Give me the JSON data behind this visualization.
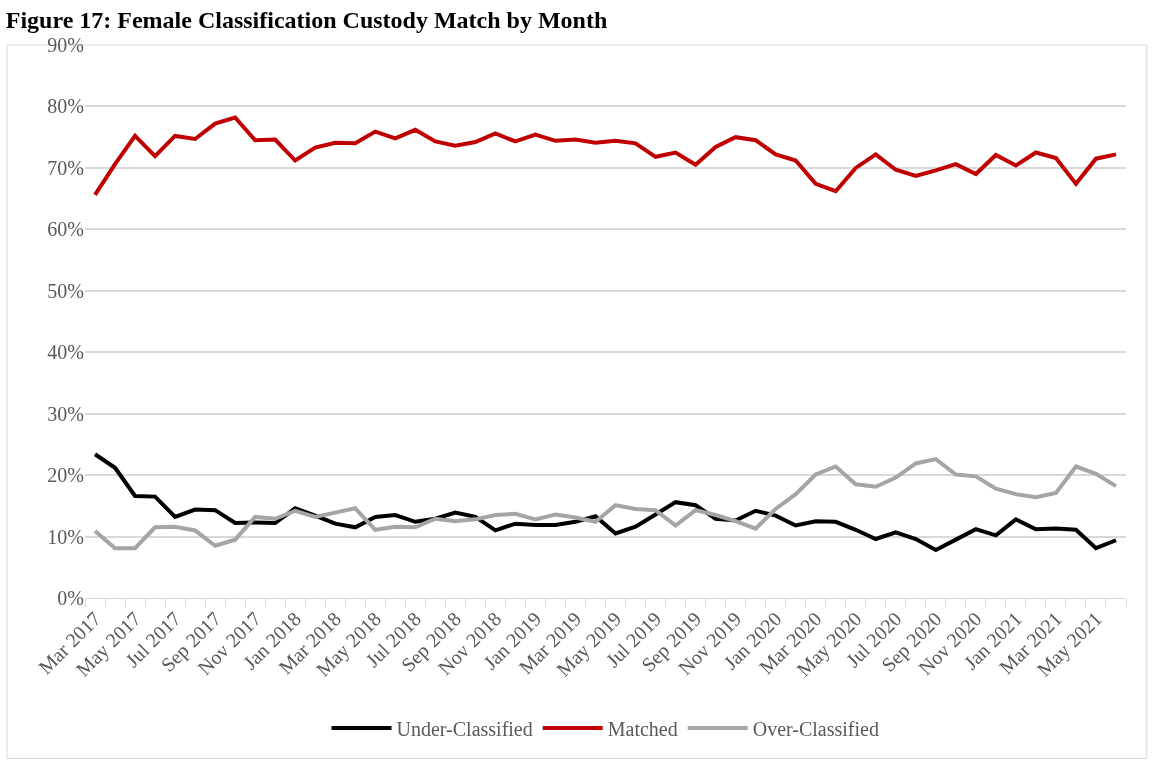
{
  "chart_data": {
    "type": "line",
    "title": "Figure 17: Female Classification Custody Match by Month",
    "categories": [
      "Mar 2017",
      null,
      "May 2017",
      null,
      "Jul 2017",
      null,
      "Sep 2017",
      null,
      "Nov 2017",
      null,
      "Jan 2018",
      null,
      "Mar 2018",
      null,
      "May 2018",
      null,
      "Jul 2018",
      null,
      "Sep 2018",
      null,
      "Nov 2018",
      null,
      "Jan 2019",
      null,
      "Mar 2019",
      null,
      "May 2019",
      null,
      "Jul 2019",
      null,
      "Sep 2019",
      null,
      "Nov 2019",
      null,
      "Jan 2020",
      null,
      "Mar 2020",
      null,
      "May 2020",
      null,
      "Jul 2020",
      null,
      "Sep 2020",
      null,
      "Nov 2020",
      null,
      "Jan 2021",
      null,
      "Mar 2021",
      null,
      "May 2021",
      null
    ],
    "series": [
      {
        "name": "Under-Classified",
        "color": "#000000",
        "values": [
          23.4,
          21.2,
          16.6,
          16.5,
          13.2,
          14.4,
          14.3,
          12.2,
          12.3,
          12.2,
          14.6,
          13.4,
          12.1,
          11.5,
          13.2,
          13.5,
          12.4,
          12.9,
          13.9,
          13.2,
          11.0,
          12.1,
          11.9,
          11.9,
          12.4,
          13.3,
          10.5,
          11.6,
          13.6,
          15.6,
          15.1,
          12.9,
          12.6,
          14.2,
          13.4,
          11.8,
          12.5,
          12.4,
          11.1,
          9.6,
          10.7,
          9.6,
          7.8,
          9.5,
          11.2,
          10.2,
          12.8,
          11.2,
          11.3,
          11.1,
          8.1,
          9.4
        ]
      },
      {
        "name": "Matched",
        "color": "#c00000",
        "values": [
          65.6,
          70.6,
          75.2,
          71.9,
          75.2,
          74.7,
          77.2,
          78.2,
          74.5,
          74.6,
          71.2,
          73.3,
          74.1,
          74.0,
          75.9,
          74.8,
          76.2,
          74.3,
          73.6,
          74.2,
          75.6,
          74.3,
          75.4,
          74.4,
          74.6,
          74.1,
          74.4,
          74.0,
          71.8,
          72.5,
          70.5,
          73.4,
          75.0,
          74.5,
          72.2,
          71.2,
          67.4,
          66.2,
          70.0,
          72.2,
          69.7,
          68.7,
          69.6,
          70.6,
          69.0,
          72.1,
          70.4,
          72.5,
          71.6,
          67.4,
          71.5,
          72.2
        ]
      },
      {
        "name": "Over-Classified",
        "color": "#a5a5a5",
        "values": [
          10.9,
          8.1,
          8.1,
          11.5,
          11.6,
          11.0,
          8.5,
          9.5,
          13.2,
          12.9,
          14.2,
          13.2,
          13.9,
          14.6,
          11.1,
          11.6,
          11.5,
          12.9,
          12.5,
          12.8,
          13.5,
          13.7,
          12.8,
          13.6,
          13.1,
          12.4,
          15.1,
          14.5,
          14.3,
          11.8,
          14.3,
          13.5,
          12.5,
          11.3,
          14.5,
          16.9,
          20.1,
          21.4,
          18.5,
          18.1,
          19.6,
          21.9,
          22.6,
          20.1,
          19.8,
          17.8,
          16.9,
          16.4,
          17.1,
          21.4,
          20.2,
          18.2
        ]
      }
    ],
    "ylim": [
      0,
      90
    ],
    "yticks": [
      {
        "value": 0,
        "label": "0%"
      },
      {
        "value": 10,
        "label": "10%"
      },
      {
        "value": 20,
        "label": "20%"
      },
      {
        "value": 30,
        "label": "30%"
      },
      {
        "value": 40,
        "label": "40%"
      },
      {
        "value": 50,
        "label": "50%"
      },
      {
        "value": 60,
        "label": "60%"
      },
      {
        "value": 70,
        "label": "70%"
      },
      {
        "value": 80,
        "label": "80%"
      },
      {
        "value": 90,
        "label": "90%"
      }
    ],
    "grid": "y",
    "legend": "bottom",
    "marker": "none",
    "line_style": "solid"
  }
}
